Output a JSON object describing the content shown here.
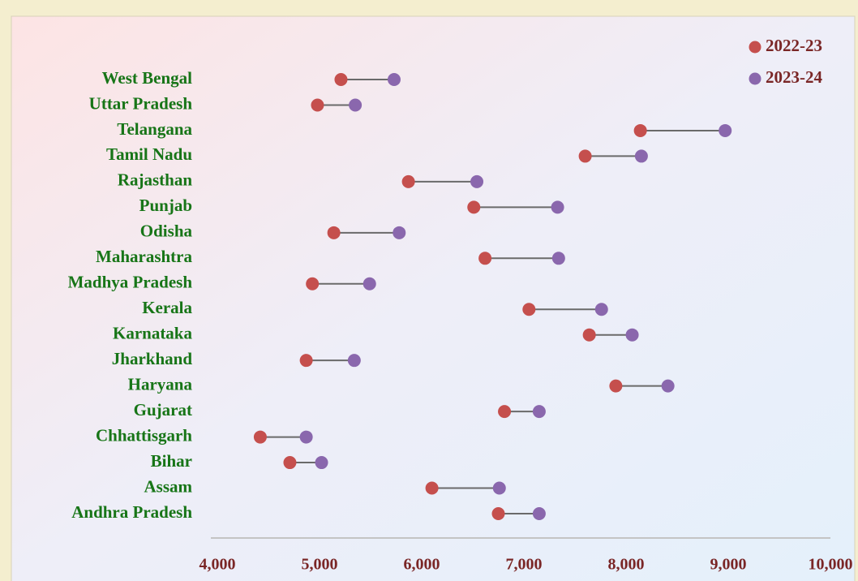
{
  "chart_data": {
    "type": "dumbbell",
    "categories": [
      "West Bengal",
      "Uttar Pradesh",
      "Telangana",
      "Tamil Nadu",
      "Rajasthan",
      "Punjab",
      "Odisha",
      "Maharashtra",
      "Madhya Pradesh",
      "Kerala",
      "Karnataka",
      "Jharkhand",
      "Haryana",
      "Gujarat",
      "Chhattisgarh",
      "Bihar",
      "Assam",
      "Andhra Pradesh"
    ],
    "series": [
      {
        "name": "2022-23",
        "color": "#c54f4d",
        "values": [
          5210,
          4980,
          8140,
          7600,
          5870,
          6510,
          5140,
          6620,
          4930,
          7050,
          7640,
          4870,
          7900,
          6810,
          4420,
          4710,
          6100,
          6750
        ]
      },
      {
        "name": "2023-24",
        "color": "#8a67ad",
        "values": [
          5730,
          5350,
          8970,
          8150,
          6540,
          7330,
          5780,
          7340,
          5490,
          7760,
          8060,
          5340,
          8410,
          7150,
          4870,
          5020,
          6760,
          7150
        ]
      }
    ],
    "xlim": [
      4000,
      10000
    ],
    "xticks": [
      {
        "value": 4000,
        "label": "4,000"
      },
      {
        "value": 5000,
        "label": "5,000"
      },
      {
        "value": 6000,
        "label": "6,000"
      },
      {
        "value": 7000,
        "label": "7,000"
      },
      {
        "value": 8000,
        "label": "8,000"
      },
      {
        "value": 9000,
        "label": "9,000"
      },
      {
        "value": 10000,
        "label": "10,000"
      }
    ],
    "legend": "top-right"
  }
}
